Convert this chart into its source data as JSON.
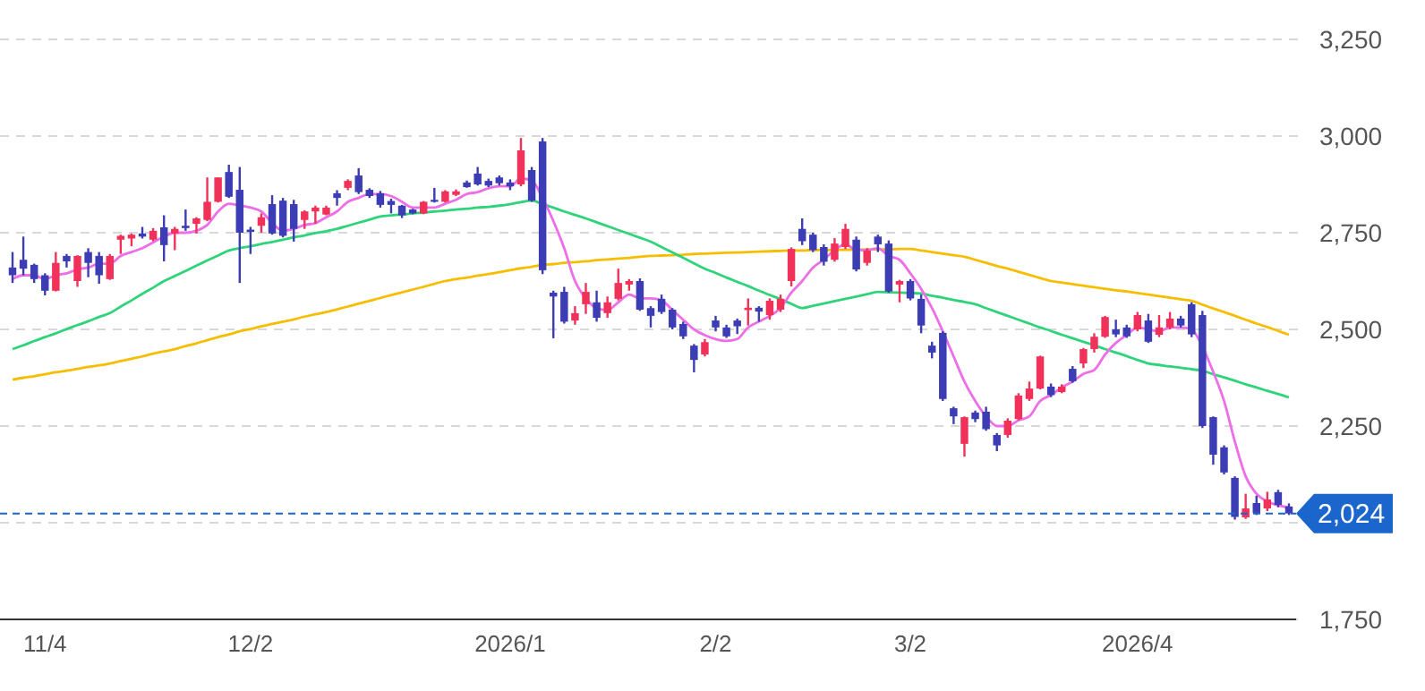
{
  "chart_data": {
    "type": "candlestick",
    "categories": [
      null,
      null,
      null,
      "11/4",
      null,
      null,
      null,
      null,
      null,
      null,
      null,
      null,
      null,
      null,
      null,
      null,
      null,
      null,
      null,
      null,
      null,
      null,
      "12/2",
      null,
      null,
      null,
      null,
      null,
      null,
      null,
      null,
      null,
      null,
      null,
      null,
      null,
      null,
      null,
      null,
      null,
      null,
      null,
      null,
      null,
      null,
      null,
      "2026/1",
      null,
      null,
      null,
      null,
      null,
      null,
      null,
      null,
      null,
      null,
      null,
      null,
      null,
      null,
      null,
      null,
      null,
      null,
      "2/2",
      null,
      null,
      null,
      null,
      null,
      null,
      null,
      null,
      null,
      null,
      null,
      null,
      null,
      null,
      null,
      null,
      null,
      "3/2",
      null,
      null,
      null,
      null,
      null,
      null,
      null,
      null,
      null,
      null,
      null,
      null,
      null,
      null,
      null,
      null,
      null,
      null,
      null,
      null,
      "2026/4",
      null,
      null,
      null,
      null,
      null,
      null,
      null,
      null,
      null,
      null,
      null,
      null,
      null,
      null
    ],
    "ohlc": [
      [
        2660,
        2700,
        2620,
        2640
      ],
      [
        2680,
        2740,
        2640,
        2657
      ],
      [
        2667,
        2670,
        2620,
        2630
      ],
      [
        2640,
        2645,
        2588,
        2600
      ],
      [
        2600,
        2700,
        2598,
        2672
      ],
      [
        2690,
        2695,
        2660,
        2676
      ],
      [
        2625,
        2692,
        2610,
        2690
      ],
      [
        2700,
        2710,
        2635,
        2672
      ],
      [
        2690,
        2700,
        2618,
        2640
      ],
      [
        2630,
        2695,
        2628,
        2690
      ],
      [
        2732,
        2745,
        2695,
        2742
      ],
      [
        2735,
        2748,
        2715,
        2745
      ],
      [
        2748,
        2765,
        2735,
        2740
      ],
      [
        2732,
        2762,
        2728,
        2755
      ],
      [
        2764,
        2795,
        2676,
        2718
      ],
      [
        2748,
        2765,
        2705,
        2760
      ],
      [
        2768,
        2810,
        2755,
        2762
      ],
      [
        2773,
        2790,
        2748,
        2787
      ],
      [
        2783,
        2893,
        2780,
        2830
      ],
      [
        2830,
        2893,
        2828,
        2893
      ],
      [
        2907,
        2926,
        2840,
        2843
      ],
      [
        2861,
        2920,
        2620,
        2750
      ],
      [
        2758,
        2765,
        2695,
        2752
      ],
      [
        2768,
        2800,
        2750,
        2790
      ],
      [
        2824,
        2847,
        2745,
        2748
      ],
      [
        2833,
        2840,
        2738,
        2742
      ],
      [
        2824,
        2835,
        2727,
        2760
      ],
      [
        2783,
        2808,
        2760,
        2805
      ],
      [
        2805,
        2820,
        2773,
        2815
      ],
      [
        2797,
        2820,
        2795,
        2815
      ],
      [
        2852,
        2860,
        2820,
        2840
      ],
      [
        2866,
        2888,
        2860,
        2884
      ],
      [
        2898,
        2917,
        2850,
        2855
      ],
      [
        2861,
        2865,
        2840,
        2845
      ],
      [
        2852,
        2858,
        2815,
        2822
      ],
      [
        2832,
        2838,
        2800,
        2822
      ],
      [
        2820,
        2822,
        2788,
        2795
      ],
      [
        2810,
        2812,
        2798,
        2800
      ],
      [
        2800,
        2832,
        2798,
        2830
      ],
      [
        2835,
        2866,
        2828,
        2830
      ],
      [
        2830,
        2860,
        2828,
        2857
      ],
      [
        2848,
        2862,
        2845,
        2857
      ],
      [
        2880,
        2885,
        2866,
        2868
      ],
      [
        2903,
        2920,
        2872,
        2875
      ],
      [
        2884,
        2890,
        2868,
        2872
      ],
      [
        2893,
        2898,
        2872,
        2878
      ],
      [
        2880,
        2888,
        2860,
        2870
      ],
      [
        2875,
        2995,
        2870,
        2963
      ],
      [
        2912,
        2920,
        2830,
        2833
      ],
      [
        2986,
        2995,
        2643,
        2653
      ],
      [
        2595,
        2600,
        2477,
        2585
      ],
      [
        2597,
        2610,
        2515,
        2520
      ],
      [
        2523,
        2560,
        2512,
        2542
      ],
      [
        2565,
        2620,
        2540,
        2597
      ],
      [
        2570,
        2600,
        2520,
        2530
      ],
      [
        2542,
        2585,
        2530,
        2570
      ],
      [
        2579,
        2657,
        2575,
        2620
      ],
      [
        2616,
        2630,
        2600,
        2625
      ],
      [
        2625,
        2632,
        2548,
        2551
      ],
      [
        2555,
        2560,
        2505,
        2535
      ],
      [
        2579,
        2590,
        2540,
        2545
      ],
      [
        2551,
        2555,
        2500,
        2505
      ],
      [
        2514,
        2520,
        2475,
        2482
      ],
      [
        2458,
        2462,
        2389,
        2421
      ],
      [
        2435,
        2475,
        2430,
        2467
      ],
      [
        2523,
        2535,
        2495,
        2505
      ],
      [
        2505,
        2512,
        2478,
        2482
      ],
      [
        2523,
        2528,
        2488,
        2508
      ],
      [
        2550,
        2580,
        2510,
        2556
      ],
      [
        2556,
        2560,
        2520,
        2546
      ],
      [
        2537,
        2580,
        2525,
        2574
      ],
      [
        2551,
        2590,
        2545,
        2579
      ],
      [
        2625,
        2712,
        2611,
        2708
      ],
      [
        2760,
        2787,
        2718,
        2728
      ],
      [
        2745,
        2750,
        2700,
        2705
      ],
      [
        2713,
        2720,
        2665,
        2675
      ],
      [
        2680,
        2736,
        2675,
        2722
      ],
      [
        2713,
        2773,
        2708,
        2760
      ],
      [
        2732,
        2740,
        2650,
        2655
      ],
      [
        2672,
        2710,
        2665,
        2704
      ],
      [
        2740,
        2745,
        2700,
        2720
      ],
      [
        2722,
        2730,
        2595,
        2598
      ],
      [
        2616,
        2628,
        2570,
        2625
      ],
      [
        2625,
        2630,
        2575,
        2580
      ],
      [
        2579,
        2590,
        2490,
        2510
      ],
      [
        2458,
        2468,
        2425,
        2440
      ],
      [
        2491,
        2495,
        2315,
        2320
      ],
      [
        2296,
        2300,
        2255,
        2275
      ],
      [
        2204,
        2275,
        2171,
        2273
      ],
      [
        2285,
        2290,
        2260,
        2268
      ],
      [
        2287,
        2300,
        2238,
        2242
      ],
      [
        2227,
        2232,
        2185,
        2200
      ],
      [
        2227,
        2270,
        2220,
        2264
      ],
      [
        2268,
        2335,
        2265,
        2329
      ],
      [
        2320,
        2365,
        2315,
        2347
      ],
      [
        2347,
        2432,
        2345,
        2430
      ],
      [
        2352,
        2360,
        2325,
        2330
      ],
      [
        2338,
        2358,
        2335,
        2352
      ],
      [
        2398,
        2405,
        2362,
        2366
      ],
      [
        2412,
        2452,
        2400,
        2449
      ],
      [
        2449,
        2490,
        2440,
        2481
      ],
      [
        2481,
        2535,
        2478,
        2532
      ],
      [
        2500,
        2525,
        2480,
        2487
      ],
      [
        2505,
        2512,
        2478,
        2482
      ],
      [
        2500,
        2545,
        2495,
        2537
      ],
      [
        2523,
        2540,
        2465,
        2468
      ],
      [
        2486,
        2537,
        2480,
        2505
      ],
      [
        2505,
        2545,
        2500,
        2528
      ],
      [
        2528,
        2535,
        2505,
        2510
      ],
      [
        2565,
        2570,
        2480,
        2487
      ],
      [
        2537,
        2548,
        2245,
        2250
      ],
      [
        2273,
        2275,
        2150,
        2176
      ],
      [
        2195,
        2200,
        2125,
        2130
      ],
      [
        2116,
        2120,
        2008,
        2015
      ],
      [
        2014,
        2075,
        2010,
        2037
      ],
      [
        2051,
        2070,
        2020,
        2025
      ],
      [
        2037,
        2080,
        2030,
        2060
      ],
      [
        2079,
        2085,
        2040,
        2046
      ],
      [
        2042,
        2050,
        2020,
        2024
      ]
    ],
    "colors": [
      "#3c3cb4",
      "#3c3cb4",
      "#3c3cb4",
      "#3c3cb4",
      "#f0325a",
      "#3c3cb4",
      "#f0325a",
      "#3c3cb4",
      "#3c3cb4",
      "#f0325a",
      "#f0325a",
      "#f0325a",
      "#3c3cb4",
      "#f0325a",
      "#3c3cb4",
      "#f0325a",
      "#3c3cb4",
      "#f0325a",
      "#f0325a",
      "#f0325a",
      "#3c3cb4",
      "#3c3cb4",
      "#3c3cb4",
      "#f0325a",
      "#3c3cb4",
      "#3c3cb4",
      "#3c3cb4",
      "#f0325a",
      "#f0325a",
      "#f0325a",
      "#3c3cb4",
      "#f0325a",
      "#3c3cb4",
      "#3c3cb4",
      "#3c3cb4",
      "#3c3cb4",
      "#3c3cb4",
      "#3c3cb4",
      "#f0325a",
      "#3c3cb4",
      "#f0325a",
      "#f0325a",
      "#3c3cb4",
      "#3c3cb4",
      "#3c3cb4",
      "#3c3cb4",
      "#3c3cb4",
      "#f0325a",
      "#3c3cb4",
      "#3c3cb4",
      "#3c3cb4",
      "#3c3cb4",
      "#f0325a",
      "#f0325a",
      "#3c3cb4",
      "#f0325a",
      "#f0325a",
      "#f0325a",
      "#3c3cb4",
      "#3c3cb4",
      "#3c3cb4",
      "#3c3cb4",
      "#3c3cb4",
      "#3c3cb4",
      "#f0325a",
      "#3c3cb4",
      "#3c3cb4",
      "#3c3cb4",
      "#f0325a",
      "#3c3cb4",
      "#f0325a",
      "#f0325a",
      "#f0325a",
      "#3c3cb4",
      "#3c3cb4",
      "#3c3cb4",
      "#f0325a",
      "#f0325a",
      "#3c3cb4",
      "#f0325a",
      "#3c3cb4",
      "#3c3cb4",
      "#f0325a",
      "#3c3cb4",
      "#3c3cb4",
      "#3c3cb4",
      "#3c3cb4",
      "#3c3cb4",
      "#f0325a",
      "#3c3cb4",
      "#3c3cb4",
      "#3c3cb4",
      "#f0325a",
      "#f0325a",
      "#f0325a",
      "#f0325a",
      "#3c3cb4",
      "#f0325a",
      "#3c3cb4",
      "#f0325a",
      "#f0325a",
      "#f0325a",
      "#3c3cb4",
      "#3c3cb4",
      "#f0325a",
      "#3c3cb4",
      "#f0325a",
      "#f0325a",
      "#3c3cb4",
      "#3c3cb4",
      "#3c3cb4",
      "#3c3cb4",
      "#3c3cb4",
      "#3c3cb4",
      "#f0325a",
      "#3c3cb4",
      "#f0325a",
      "#3c3cb4",
      "#3c3cb4"
    ],
    "series": [
      {
        "type": "line",
        "color": "#f7bd00",
        "values": [
          2370,
          2375,
          2379,
          2384,
          2389,
          2393,
          2398,
          2403,
          2407,
          2412,
          2418,
          2424,
          2430,
          2437,
          2443,
          2449,
          2457,
          2464,
          2472,
          2480,
          2487,
          2495,
          2501,
          2508,
          2514,
          2520,
          2526,
          2533,
          2539,
          2545,
          2552,
          2559,
          2567,
          2574,
          2581,
          2589,
          2596,
          2603,
          2610,
          2618,
          2625,
          2630,
          2634,
          2639,
          2643,
          2648,
          2653,
          2658,
          2662,
          2667,
          2669,
          2672,
          2674,
          2676,
          2679,
          2681,
          2683,
          2685,
          2688,
          2690,
          2691,
          2692,
          2693,
          2695,
          2696,
          2697,
          2698,
          2699,
          2700,
          2701,
          2702,
          2703,
          2704,
          2704,
          2705,
          2705,
          2705,
          2706,
          2706,
          2707,
          2707,
          2707,
          2708,
          2708,
          2704,
          2700,
          2696,
          2692,
          2688,
          2680,
          2672,
          2664,
          2657,
          2649,
          2641,
          2633,
          2625,
          2621,
          2617,
          2613,
          2609,
          2605,
          2601,
          2598,
          2594,
          2590,
          2586,
          2582,
          2578,
          2574,
          2564,
          2554,
          2545,
          2535,
          2525,
          2515,
          2506,
          2496,
          2486
        ]
      },
      {
        "type": "line",
        "color": "#2fd47a",
        "values": [
          2449,
          2459,
          2470,
          2480,
          2490,
          2501,
          2511,
          2521,
          2532,
          2542,
          2559,
          2575,
          2592,
          2608,
          2625,
          2638,
          2651,
          2665,
          2678,
          2691,
          2704,
          2710,
          2715,
          2721,
          2726,
          2732,
          2738,
          2743,
          2749,
          2754,
          2760,
          2768,
          2776,
          2784,
          2792,
          2795,
          2797,
          2800,
          2802,
          2805,
          2807,
          2810,
          2812,
          2815,
          2817,
          2820,
          2824,
          2829,
          2833,
          2824,
          2815,
          2805,
          2796,
          2787,
          2777,
          2767,
          2757,
          2747,
          2737,
          2727,
          2713,
          2699,
          2685,
          2671,
          2657,
          2646,
          2634,
          2623,
          2612,
          2600,
          2589,
          2578,
          2566,
          2555,
          2561,
          2567,
          2573,
          2579,
          2585,
          2591,
          2597,
          2596,
          2595,
          2594,
          2593,
          2587,
          2582,
          2576,
          2571,
          2565,
          2555,
          2545,
          2535,
          2525,
          2515,
          2505,
          2496,
          2486,
          2477,
          2468,
          2459,
          2449,
          2440,
          2431,
          2421,
          2412,
          2408,
          2404,
          2401,
          2397,
          2393,
          2384,
          2376,
          2367,
          2358,
          2350,
          2341,
          2333,
          2324
        ]
      },
      {
        "type": "line",
        "color": "#ee6ee8",
        "values": [
          2630,
          2640,
          2640,
          2630,
          2640,
          2645,
          2655,
          2660,
          2670,
          2670,
          2690,
          2700,
          2710,
          2725,
          2740,
          2750,
          2750,
          2755,
          2770,
          2805,
          2825,
          2820,
          2815,
          2805,
          2775,
          2755,
          2760,
          2770,
          2775,
          2790,
          2805,
          2830,
          2840,
          2850,
          2850,
          2845,
          2830,
          2815,
          2815,
          2815,
          2825,
          2835,
          2850,
          2855,
          2865,
          2870,
          2870,
          2890,
          2885,
          2840,
          2780,
          2710,
          2625,
          2580,
          2555,
          2550,
          2570,
          2590,
          2580,
          2580,
          2575,
          2550,
          2525,
          2500,
          2485,
          2475,
          2470,
          2475,
          2505,
          2520,
          2535,
          2555,
          2595,
          2625,
          2660,
          2680,
          2705,
          2720,
          2705,
          2705,
          2710,
          2690,
          2680,
          2645,
          2605,
          2555,
          2495,
          2430,
          2365,
          2315,
          2275,
          2250,
          2250,
          2265,
          2275,
          2315,
          2330,
          2350,
          2365,
          2385,
          2395,
          2435,
          2465,
          2485,
          2505,
          2500,
          2495,
          2505,
          2505,
          2500,
          2455,
          2390,
          2315,
          2210,
          2120,
          2075,
          2055,
          2045,
          2040
        ]
      }
    ],
    "ylim": [
      1750,
      3250
    ],
    "yticks": [
      {
        "value": 1750,
        "label": "1,750"
      },
      {
        "value": 2000,
        "label": null
      },
      {
        "value": 2250,
        "label": "2,250"
      },
      {
        "value": 2500,
        "label": "2,500"
      },
      {
        "value": 2750,
        "label": "2,750"
      },
      {
        "value": 3000,
        "label": "3,000"
      },
      {
        "value": 3250,
        "label": "3,250"
      }
    ],
    "grid": "y",
    "ref_lines": [
      {
        "axis": "y",
        "value": 2024,
        "label": "2,024",
        "color": "#1a66cc",
        "line_style": "dashed"
      }
    ]
  }
}
